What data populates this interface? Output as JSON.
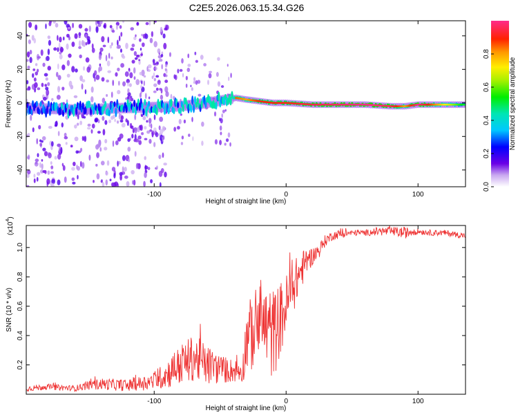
{
  "title": "C2E5.2026.063.15.34.G26",
  "chart_data": [
    {
      "type": "heatmap",
      "title": "C2E5.2026.063.15.34.G26",
      "xlabel": "Height of straight line (km)",
      "ylabel": "Frequency (Hz)",
      "xlim": [
        -197,
        136
      ],
      "ylim": [
        -50,
        49
      ],
      "xticks": [
        -100,
        0,
        100
      ],
      "xtick_labels": [
        "-100",
        "0",
        "100"
      ],
      "yticks": [
        -40,
        -20,
        0,
        20,
        40
      ],
      "ytick_labels": [
        "-40",
        "-20",
        "0",
        "20",
        "40"
      ],
      "ridge": {
        "x": [
          -197,
          -160,
          -120,
          -80,
          -60,
          -45,
          -38,
          -30,
          -20,
          -10,
          0,
          20,
          60,
          80,
          90,
          100,
          136
        ],
        "frequency": [
          -3,
          -4,
          -3,
          -2,
          0,
          2,
          3,
          2,
          1,
          0,
          0,
          -1,
          -1,
          -2,
          -2,
          -1,
          -1
        ],
        "amplitude": [
          0.35,
          0.4,
          0.4,
          0.45,
          0.5,
          0.6,
          0.85,
          0.8,
          0.9,
          0.9,
          0.9,
          0.95,
          1.0,
          0.95,
          0.8,
          1.0,
          0.5
        ]
      },
      "colorbar": {
        "label": "Normalized spectral amplitude",
        "range": [
          0,
          1
        ],
        "ticks": [
          0.0,
          0.2,
          0.4,
          0.6,
          0.8
        ],
        "tick_labels": [
          "0.0",
          "0.2",
          "0.4",
          "0.6",
          "0.8"
        ]
      }
    },
    {
      "type": "line",
      "xlabel": "Height of straight line (km)",
      "ylabel": "SNR (10 * v/v)",
      "scale_label": "(x10",
      "scale_exponent": "4",
      "scale_close": ")",
      "xlim": [
        -197,
        136
      ],
      "ylim": [
        0,
        1.15
      ],
      "xticks": [
        -100,
        0,
        100
      ],
      "xtick_labels": [
        "-100",
        "0",
        "100"
      ],
      "yticks": [
        0.2,
        0.4,
        0.6,
        0.8,
        1.0
      ],
      "ytick_labels": [
        "0.2",
        "0.4",
        "0.6",
        "0.8",
        "1.0"
      ],
      "series": [
        {
          "name": "SNR",
          "color": "#ee3333",
          "x": [
            -197,
            -180,
            -160,
            -150,
            -140,
            -120,
            -100,
            -90,
            -80,
            -70,
            -60,
            -50,
            -40,
            -33,
            -30,
            -25,
            -20,
            -15,
            -10,
            -5,
            0,
            5,
            10,
            15,
            20,
            25,
            30,
            35,
            40,
            50,
            60,
            70,
            80,
            90,
            100,
            110,
            120,
            136
          ],
          "y": [
            0.04,
            0.05,
            0.04,
            0.06,
            0.07,
            0.06,
            0.09,
            0.14,
            0.2,
            0.25,
            0.2,
            0.17,
            0.16,
            0.16,
            0.38,
            0.42,
            0.5,
            0.45,
            0.4,
            0.5,
            0.6,
            0.72,
            0.82,
            0.9,
            0.94,
            0.98,
            1.05,
            1.08,
            1.09,
            1.1,
            1.1,
            1.11,
            1.11,
            1.1,
            1.11,
            1.1,
            1.1,
            1.08
          ],
          "noise": [
            0.02,
            0.02,
            0.02,
            0.03,
            0.04,
            0.04,
            0.06,
            0.1,
            0.14,
            0.16,
            0.14,
            0.1,
            0.08,
            0.08,
            0.24,
            0.26,
            0.3,
            0.3,
            0.32,
            0.26,
            0.22,
            0.18,
            0.14,
            0.1,
            0.06,
            0.05,
            0.04,
            0.03,
            0.03,
            0.02,
            0.02,
            0.03,
            0.03,
            0.04,
            0.02,
            0.02,
            0.02,
            0.02
          ]
        }
      ]
    }
  ]
}
